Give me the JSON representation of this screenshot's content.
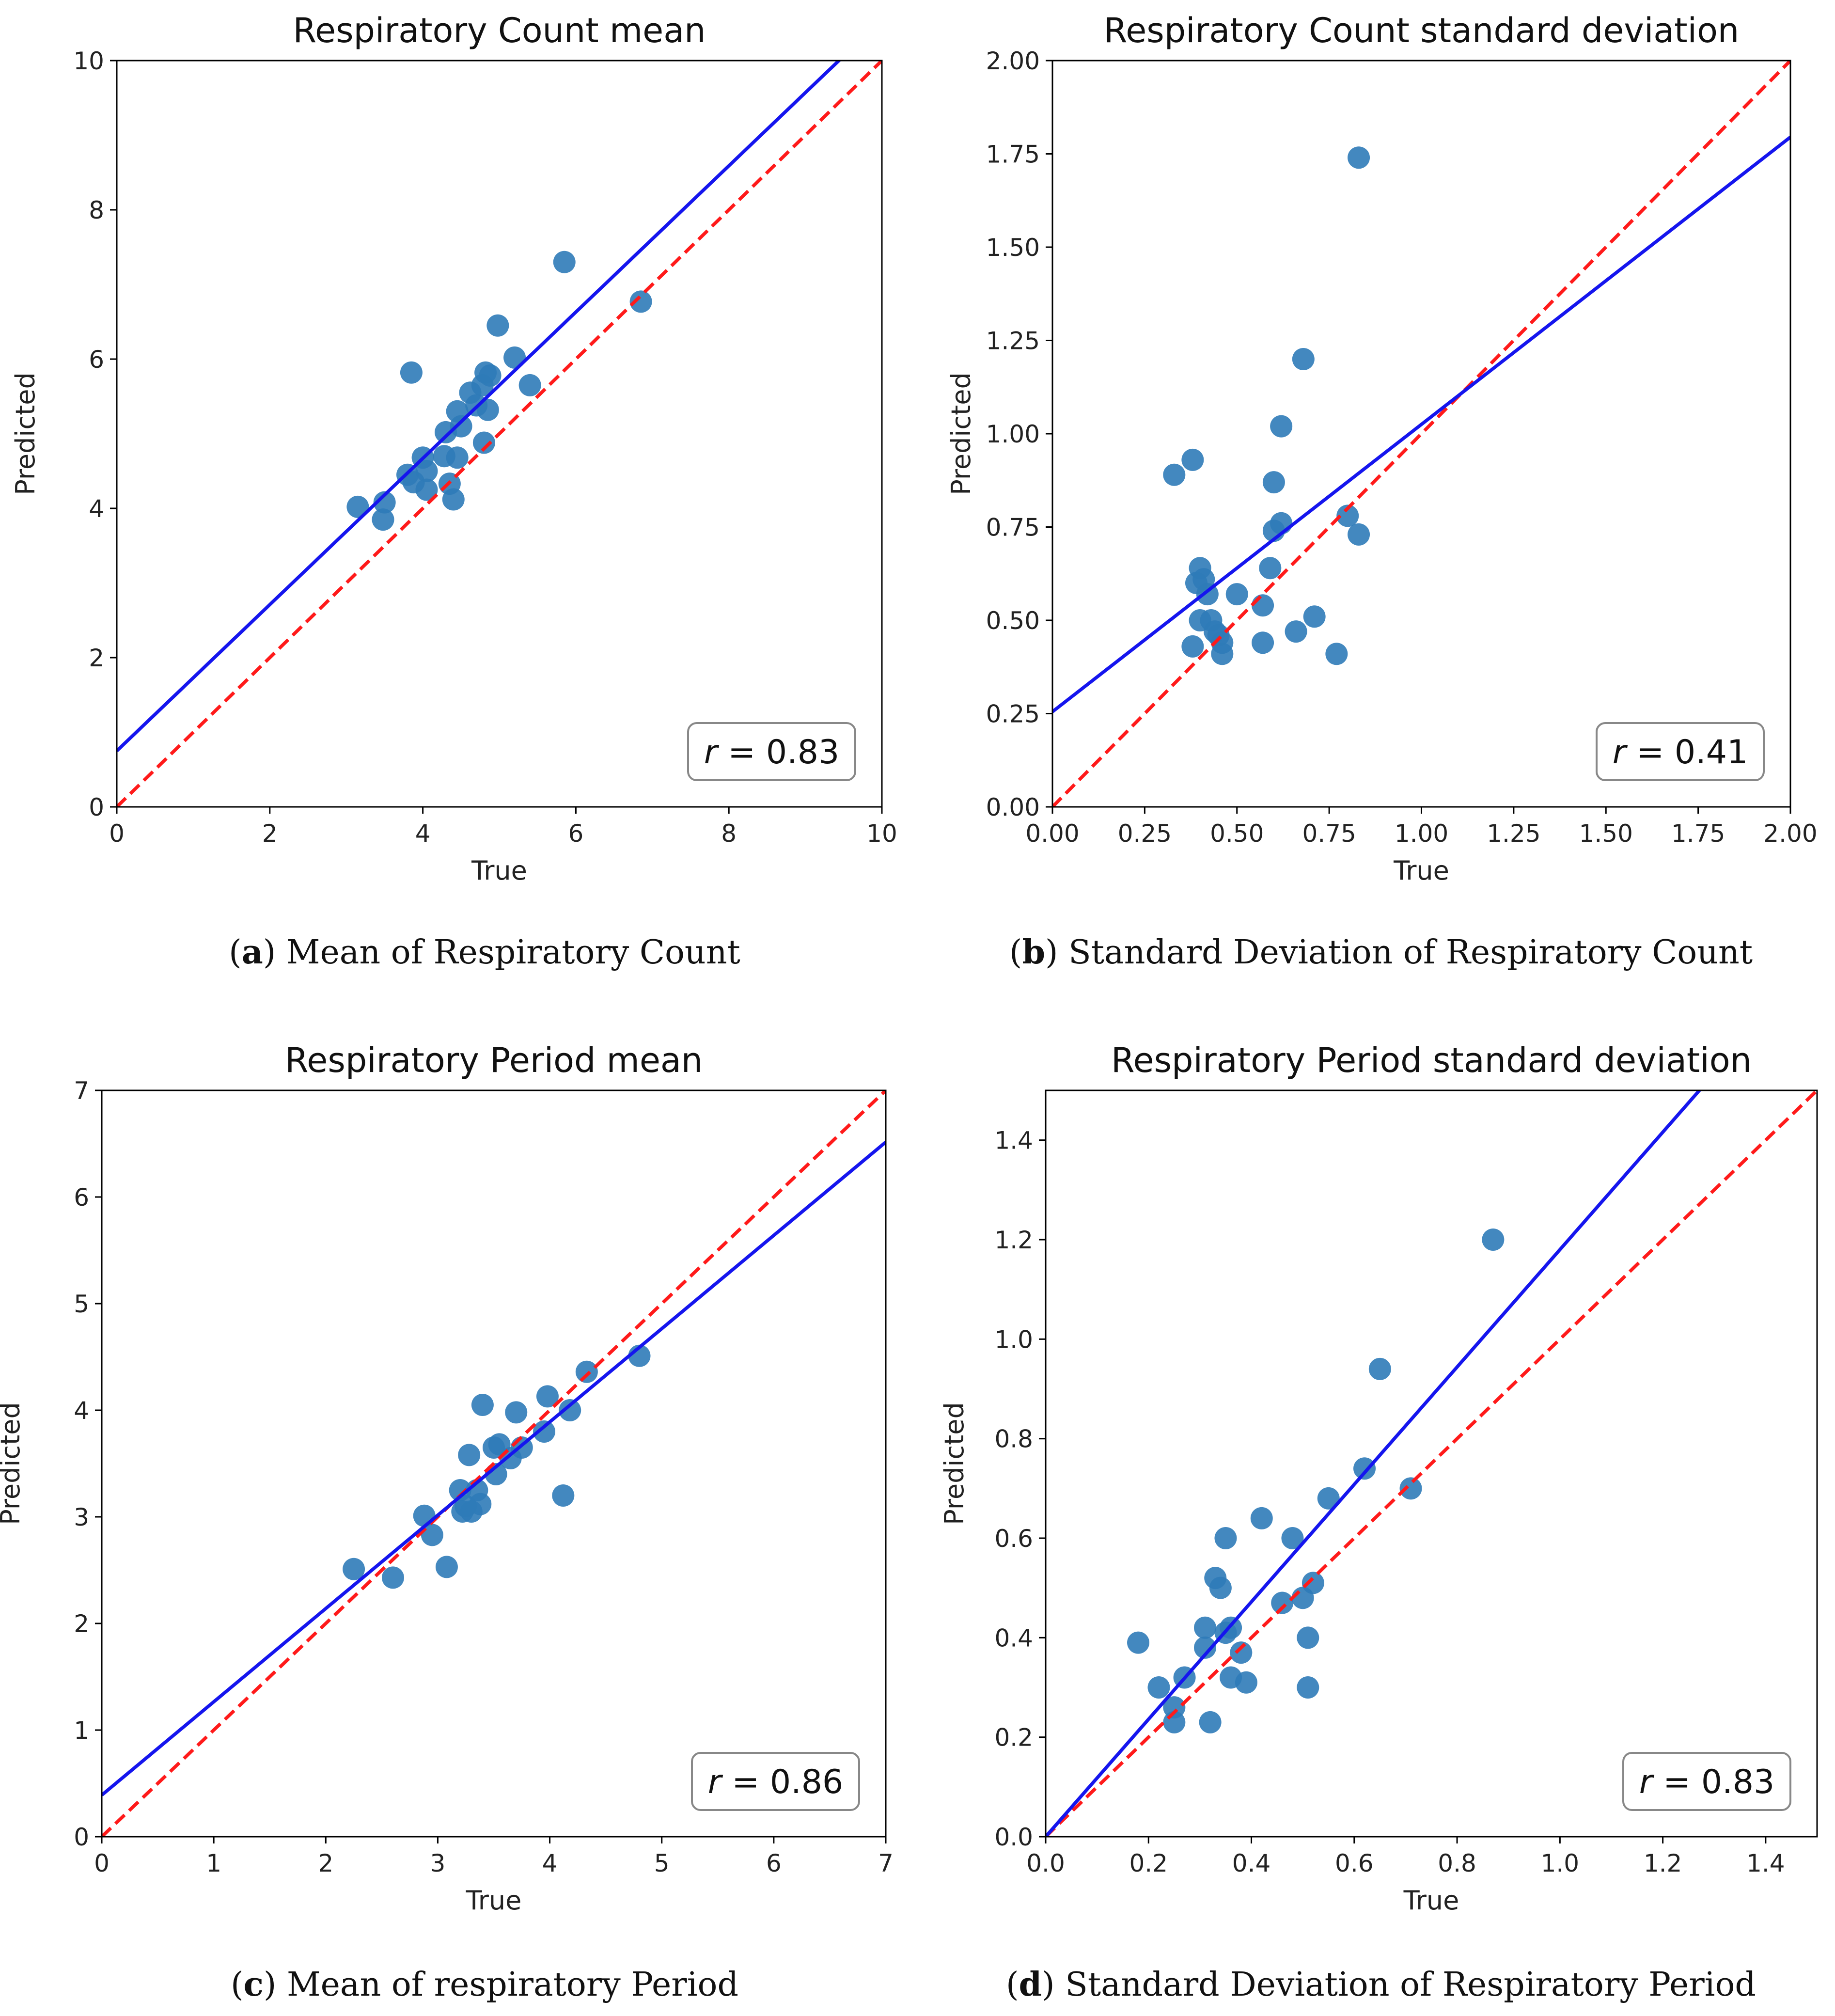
{
  "chart_data": [
    {
      "type": "scatter",
      "title": "Respiratory Count mean",
      "xlabel": "True",
      "ylabel": "Predicted",
      "xlim": [
        0,
        10
      ],
      "ylim": [
        0,
        10
      ],
      "xticks": [
        0,
        2,
        4,
        6,
        8,
        10
      ],
      "yticks": [
        0,
        2,
        4,
        6,
        8,
        10
      ],
      "xtick_labels": [
        "0",
        "2",
        "4",
        "6",
        "8",
        "10"
      ],
      "ytick_labels": [
        "0",
        "2",
        "4",
        "6",
        "8",
        "10"
      ],
      "r_prefix": "r",
      "r_value": "= 0.83",
      "fit_line": {
        "intercept": 0.75,
        "slope": 0.98
      },
      "identity_line": true,
      "points": [
        [
          3.15,
          4.02
        ],
        [
          3.5,
          4.08
        ],
        [
          3.48,
          3.85
        ],
        [
          3.8,
          4.45
        ],
        [
          3.88,
          4.35
        ],
        [
          3.85,
          5.82
        ],
        [
          4.0,
          4.68
        ],
        [
          4.05,
          4.5
        ],
        [
          4.05,
          4.25
        ],
        [
          4.28,
          4.7
        ],
        [
          4.3,
          5.02
        ],
        [
          4.35,
          4.33
        ],
        [
          4.4,
          4.12
        ],
        [
          4.45,
          4.68
        ],
        [
          4.45,
          5.3
        ],
        [
          4.5,
          5.1
        ],
        [
          4.62,
          5.55
        ],
        [
          4.7,
          5.38
        ],
        [
          4.78,
          5.65
        ],
        [
          4.8,
          4.88
        ],
        [
          4.82,
          5.82
        ],
        [
          4.85,
          5.32
        ],
        [
          4.88,
          5.78
        ],
        [
          4.98,
          6.45
        ],
        [
          5.2,
          6.02
        ],
        [
          5.4,
          5.65
        ],
        [
          5.85,
          7.3
        ],
        [
          6.85,
          6.77
        ]
      ],
      "caption_letter": "a",
      "caption_text": "Mean of Respiratory Count"
    },
    {
      "type": "scatter",
      "title": "Respiratory Count standard deviation",
      "xlabel": "True",
      "ylabel": "Predicted",
      "xlim": [
        0,
        2
      ],
      "ylim": [
        0,
        2
      ],
      "xticks": [
        0,
        0.25,
        0.5,
        0.75,
        1.0,
        1.25,
        1.5,
        1.75,
        2.0
      ],
      "yticks": [
        0,
        0.25,
        0.5,
        0.75,
        1.0,
        1.25,
        1.5,
        1.75,
        2.0
      ],
      "xtick_labels": [
        "0.00",
        "0.25",
        "0.50",
        "0.75",
        "1.00",
        "1.25",
        "1.50",
        "1.75",
        "2.00"
      ],
      "ytick_labels": [
        "0.00",
        "0.25",
        "0.50",
        "0.75",
        "1.00",
        "1.25",
        "1.50",
        "1.75",
        "2.00"
      ],
      "r_prefix": "r",
      "r_value": "= 0.41",
      "fit_line": {
        "intercept": 0.255,
        "slope": 0.77
      },
      "identity_line": true,
      "points": [
        [
          0.33,
          0.89
        ],
        [
          0.38,
          0.93
        ],
        [
          0.38,
          0.43
        ],
        [
          0.39,
          0.6
        ],
        [
          0.4,
          0.64
        ],
        [
          0.4,
          0.5
        ],
        [
          0.41,
          0.61
        ],
        [
          0.42,
          0.57
        ],
        [
          0.43,
          0.5
        ],
        [
          0.44,
          0.47
        ],
        [
          0.45,
          0.46
        ],
        [
          0.46,
          0.41
        ],
        [
          0.46,
          0.44
        ],
        [
          0.5,
          0.57
        ],
        [
          0.57,
          0.54
        ],
        [
          0.57,
          0.44
        ],
        [
          0.59,
          0.64
        ],
        [
          0.6,
          0.74
        ],
        [
          0.6,
          0.87
        ],
        [
          0.62,
          1.02
        ],
        [
          0.62,
          0.76
        ],
        [
          0.66,
          0.47
        ],
        [
          0.68,
          1.2
        ],
        [
          0.71,
          0.51
        ],
        [
          0.77,
          0.41
        ],
        [
          0.8,
          0.78
        ],
        [
          0.83,
          0.73
        ],
        [
          0.83,
          1.74
        ]
      ],
      "caption_letter": "b",
      "caption_text": "Standard Deviation of Respiratory Count"
    },
    {
      "type": "scatter",
      "title": "Respiratory Period mean",
      "xlabel": "True",
      "ylabel": "Predicted",
      "xlim": [
        0,
        7
      ],
      "ylim": [
        0,
        7
      ],
      "xticks": [
        0,
        1,
        2,
        3,
        4,
        5,
        6,
        7
      ],
      "yticks": [
        0,
        1,
        2,
        3,
        4,
        5,
        6,
        7
      ],
      "xtick_labels": [
        "0",
        "1",
        "2",
        "3",
        "4",
        "5",
        "6",
        "7"
      ],
      "ytick_labels": [
        "0",
        "1",
        "2",
        "3",
        "4",
        "5",
        "6",
        "7"
      ],
      "r_prefix": "r",
      "r_value": "= 0.86",
      "fit_line": {
        "intercept": 0.39,
        "slope": 0.875
      },
      "identity_line": true,
      "points": [
        [
          2.25,
          2.51
        ],
        [
          2.6,
          2.43
        ],
        [
          2.88,
          3.01
        ],
        [
          2.95,
          2.83
        ],
        [
          3.08,
          2.53
        ],
        [
          3.2,
          3.25
        ],
        [
          3.22,
          3.05
        ],
        [
          3.25,
          3.1
        ],
        [
          3.28,
          3.58
        ],
        [
          3.3,
          3.05
        ],
        [
          3.35,
          3.25
        ],
        [
          3.38,
          3.12
        ],
        [
          3.4,
          4.05
        ],
        [
          3.5,
          3.65
        ],
        [
          3.52,
          3.4
        ],
        [
          3.55,
          3.68
        ],
        [
          3.65,
          3.55
        ],
        [
          3.7,
          3.98
        ],
        [
          3.75,
          3.65
        ],
        [
          3.95,
          3.8
        ],
        [
          3.98,
          4.13
        ],
        [
          4.12,
          3.2
        ],
        [
          4.18,
          4.0
        ],
        [
          4.33,
          4.36
        ],
        [
          4.8,
          4.51
        ]
      ],
      "caption_letter": "c",
      "caption_text": "Mean of respiratory Period"
    },
    {
      "type": "scatter",
      "title": "Respiratory Period standard deviation",
      "xlabel": "True",
      "ylabel": "Predicted",
      "xlim": [
        0,
        1.5
      ],
      "ylim": [
        0,
        1.5
      ],
      "xticks": [
        0,
        0.2,
        0.4,
        0.6,
        0.8,
        1.0,
        1.2,
        1.4
      ],
      "yticks": [
        0,
        0.2,
        0.4,
        0.6,
        0.8,
        1.0,
        1.2,
        1.4
      ],
      "xtick_labels": [
        "0.0",
        "0.2",
        "0.4",
        "0.6",
        "0.8",
        "1.0",
        "1.2",
        "1.4"
      ],
      "ytick_labels": [
        "0.0",
        "0.2",
        "0.4",
        "0.6",
        "0.8",
        "1.0",
        "1.2",
        "1.4"
      ],
      "r_prefix": "r",
      "r_value": "= 0.83",
      "fit_line": {
        "intercept": 0.0,
        "slope": 1.18
      },
      "identity_line": true,
      "points": [
        [
          0.18,
          0.39
        ],
        [
          0.22,
          0.3
        ],
        [
          0.25,
          0.26
        ],
        [
          0.25,
          0.23
        ],
        [
          0.27,
          0.32
        ],
        [
          0.31,
          0.38
        ],
        [
          0.31,
          0.42
        ],
        [
          0.32,
          0.23
        ],
        [
          0.33,
          0.52
        ],
        [
          0.34,
          0.5
        ],
        [
          0.35,
          0.6
        ],
        [
          0.35,
          0.41
        ],
        [
          0.36,
          0.42
        ],
        [
          0.36,
          0.32
        ],
        [
          0.38,
          0.37
        ],
        [
          0.39,
          0.31
        ],
        [
          0.42,
          0.64
        ],
        [
          0.46,
          0.47
        ],
        [
          0.48,
          0.6
        ],
        [
          0.5,
          0.48
        ],
        [
          0.51,
          0.3
        ],
        [
          0.51,
          0.4
        ],
        [
          0.52,
          0.51
        ],
        [
          0.55,
          0.68
        ],
        [
          0.62,
          0.74
        ],
        [
          0.65,
          0.94
        ],
        [
          0.71,
          0.7
        ],
        [
          0.87,
          1.2
        ]
      ],
      "caption_letter": "d",
      "caption_text": "Standard Deviation of Respiratory Period"
    }
  ]
}
